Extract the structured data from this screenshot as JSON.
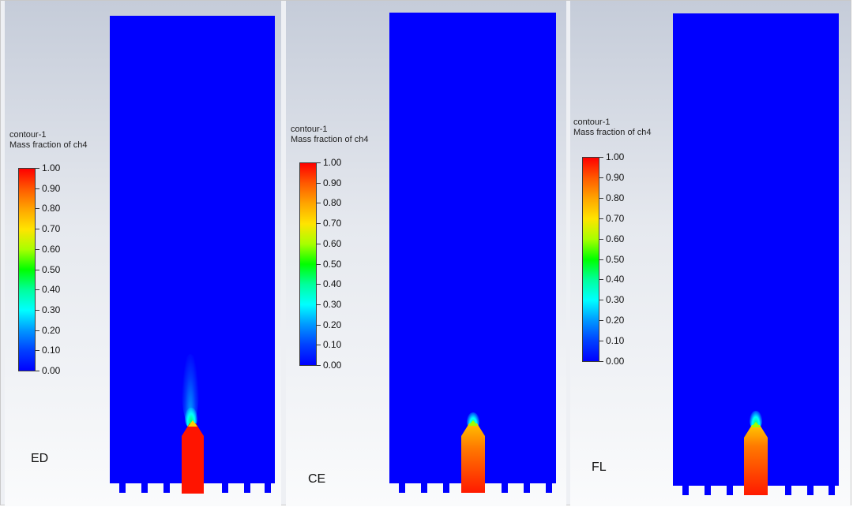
{
  "panels": [
    {
      "legend_title": "contour-1",
      "legend_subtitle": "Mass fraction of ch4",
      "model_label": "ED",
      "colorbar": {
        "variable": "Mass fraction of ch4",
        "min": 0.0,
        "max": 1.0,
        "ticks": [
          "1.00",
          "0.90",
          "0.80",
          "0.70",
          "0.60",
          "0.50",
          "0.40",
          "0.30",
          "0.20",
          "0.10",
          "0.00"
        ],
        "colormap": [
          "#ff0000",
          "#ff5a00",
          "#ffa500",
          "#ffe400",
          "#a8ff00",
          "#00ff00",
          "#00ff9c",
          "#00ffff",
          "#0098ff",
          "#0040ff",
          "#0000ff"
        ]
      }
    },
    {
      "legend_title": "contour-1",
      "legend_subtitle": "Mass fraction of ch4",
      "model_label": "CE",
      "colorbar": {
        "variable": "Mass fraction of ch4",
        "min": 0.0,
        "max": 1.0,
        "ticks": [
          "1.00",
          "0.90",
          "0.80",
          "0.70",
          "0.60",
          "0.50",
          "0.40",
          "0.30",
          "0.20",
          "0.10",
          "0.00"
        ],
        "colormap": [
          "#ff0000",
          "#ff5a00",
          "#ffa500",
          "#ffe400",
          "#a8ff00",
          "#00ff00",
          "#00ff9c",
          "#00ffff",
          "#0098ff",
          "#0040ff",
          "#0000ff"
        ]
      }
    },
    {
      "legend_title": "contour-1",
      "legend_subtitle": "Mass fraction of ch4",
      "model_label": "FL",
      "colorbar": {
        "variable": "Mass fraction of ch4",
        "min": 0.0,
        "max": 1.0,
        "ticks": [
          "1.00",
          "0.90",
          "0.80",
          "0.70",
          "0.60",
          "0.50",
          "0.40",
          "0.30",
          "0.20",
          "0.10",
          "0.00"
        ],
        "colormap": [
          "#ff0000",
          "#ff5a00",
          "#ffa500",
          "#ffe400",
          "#a8ff00",
          "#00ff00",
          "#00ff9c",
          "#00ffff",
          "#0098ff",
          "#0040ff",
          "#0000ff"
        ]
      }
    }
  ],
  "colors": {
    "domain_fill": "#0000ff",
    "fuel_core": "#ff0000",
    "background_top": "#c5ccd9",
    "background_bottom": "#fafbfc"
  }
}
